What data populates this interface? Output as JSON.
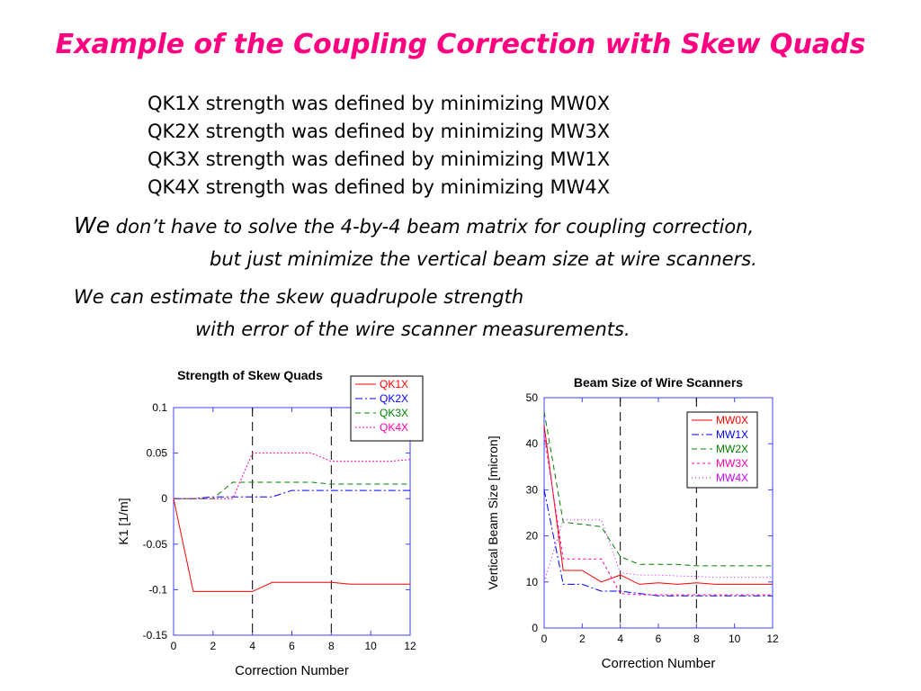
{
  "slide": {
    "title": "Example of the Coupling Correction with Skew Quads",
    "lines": [
      "QK1X strength was defined by minimizing MW0X",
      "QK2X strength was defined by minimizing MW3X",
      "QK3X strength was defined by minimizing MW1X",
      "QK4X strength was defined by minimizing MW4X"
    ],
    "note1_we": "We",
    "note1_rest": "don’t have to solve the 4-by-4 beam matrix for coupling correction,",
    "note1_line2": "but just minimize the vertical beam size at wire scanners.",
    "note2_line1": "We can estimate the skew quadrupole strength",
    "note2_line2": "with error of the wire scanner measurements."
  },
  "colors": {
    "title": "#ff0080",
    "axis": "#4040ff"
  },
  "chart_data": [
    {
      "type": "line",
      "title": "Strength of Skew Quads",
      "xlabel": "Correction Number",
      "ylabel": "K1 [1/m]",
      "xlim": [
        0,
        12
      ],
      "ylim": [
        -0.15,
        0.1
      ],
      "xticks": [
        0,
        2,
        4,
        6,
        8,
        10,
        12
      ],
      "yticks": [
        -0.15,
        -0.1,
        -0.05,
        0,
        0.05,
        0.1
      ],
      "vlines": [
        4,
        8
      ],
      "grid": false,
      "legend_position": "top-right",
      "series": [
        {
          "name": "QK1X",
          "color": "#ff0000",
          "dash": "",
          "x": [
            0,
            1,
            2,
            3,
            4,
            5,
            6,
            7,
            8,
            9,
            10,
            11,
            12
          ],
          "y": [
            0,
            -0.102,
            -0.102,
            -0.102,
            -0.102,
            -0.092,
            -0.092,
            -0.092,
            -0.092,
            -0.094,
            -0.094,
            -0.094,
            -0.094
          ]
        },
        {
          "name": "QK2X",
          "color": "#0000ff",
          "dash": "8,3,2,3",
          "x": [
            0,
            1,
            2,
            3,
            4,
            5,
            6,
            7,
            8,
            9,
            10,
            11,
            12
          ],
          "y": [
            0,
            0,
            0.002,
            0.002,
            0.002,
            0.002,
            0.009,
            0.009,
            0.009,
            0.009,
            0.009,
            0.009,
            0.009
          ]
        },
        {
          "name": "QK3X",
          "color": "#008000",
          "dash": "6,4",
          "x": [
            0,
            1,
            2,
            3,
            4,
            5,
            6,
            7,
            8,
            9,
            10,
            11,
            12
          ],
          "y": [
            0,
            0,
            0,
            0.018,
            0.018,
            0.018,
            0.018,
            0.018,
            0.016,
            0.016,
            0.016,
            0.016,
            0.016
          ]
        },
        {
          "name": "QK4X",
          "color": "#ff00aa",
          "dash": "2,2",
          "x": [
            0,
            1,
            2,
            3,
            4,
            5,
            6,
            7,
            8,
            9,
            10,
            11,
            12
          ],
          "y": [
            0,
            0,
            0,
            0,
            0.05,
            0.05,
            0.05,
            0.05,
            0.041,
            0.041,
            0.041,
            0.041,
            0.043
          ]
        }
      ]
    },
    {
      "type": "line",
      "title": "Beam Size of Wire Scanners",
      "xlabel": "Correction Number",
      "ylabel": "Vertical Beam Size [micron]",
      "xlim": [
        0,
        12
      ],
      "ylim": [
        0,
        50
      ],
      "xticks": [
        0,
        2,
        4,
        6,
        8,
        10,
        12
      ],
      "yticks": [
        0,
        10,
        20,
        30,
        40,
        50
      ],
      "vlines": [
        4,
        8
      ],
      "grid": false,
      "legend_position": "top-right",
      "series": [
        {
          "name": "MW0X",
          "color": "#ff0000",
          "dash": "",
          "x": [
            0,
            1,
            2,
            3,
            4,
            5,
            6,
            7,
            8,
            9,
            10,
            11,
            12
          ],
          "y": [
            44,
            12.5,
            12.5,
            10,
            11.5,
            9.5,
            9.8,
            9.5,
            9.8,
            9.5,
            9.5,
            9.5,
            9.5
          ]
        },
        {
          "name": "MW1X",
          "color": "#0000ff",
          "dash": "8,3,2,3",
          "x": [
            0,
            1,
            2,
            3,
            4,
            5,
            6,
            7,
            8,
            9,
            10,
            11,
            12
          ],
          "y": [
            30,
            9.5,
            9.5,
            8,
            8,
            7.5,
            7,
            7,
            7,
            7,
            7,
            7,
            7
          ]
        },
        {
          "name": "MW2X",
          "color": "#008000",
          "dash": "6,4",
          "x": [
            0,
            1,
            2,
            3,
            4,
            5,
            6,
            7,
            8,
            9,
            10,
            11,
            12
          ],
          "y": [
            47,
            23,
            22.5,
            22,
            15.5,
            13.8,
            13.8,
            13.8,
            13.5,
            13.5,
            13.5,
            13.5,
            13.5
          ]
        },
        {
          "name": "MW3X",
          "color": "#ff00aa",
          "dash": "3,3",
          "x": [
            0,
            1,
            2,
            3,
            4,
            5,
            6,
            7,
            8,
            9,
            10,
            11,
            12
          ],
          "y": [
            42,
            15,
            15,
            15,
            7.5,
            7.2,
            7.2,
            7.2,
            7.2,
            7.2,
            7.2,
            7.2,
            7.2
          ]
        },
        {
          "name": "MW4X",
          "color": "#cc00ff",
          "dash": "1,3",
          "x": [
            0,
            1,
            2,
            3,
            4,
            5,
            6,
            7,
            8,
            9,
            10,
            11,
            12
          ],
          "y": [
            10,
            23.5,
            23.5,
            23.5,
            12,
            11.5,
            11.5,
            11.3,
            11.2,
            11,
            11,
            11,
            11
          ]
        }
      ]
    }
  ]
}
